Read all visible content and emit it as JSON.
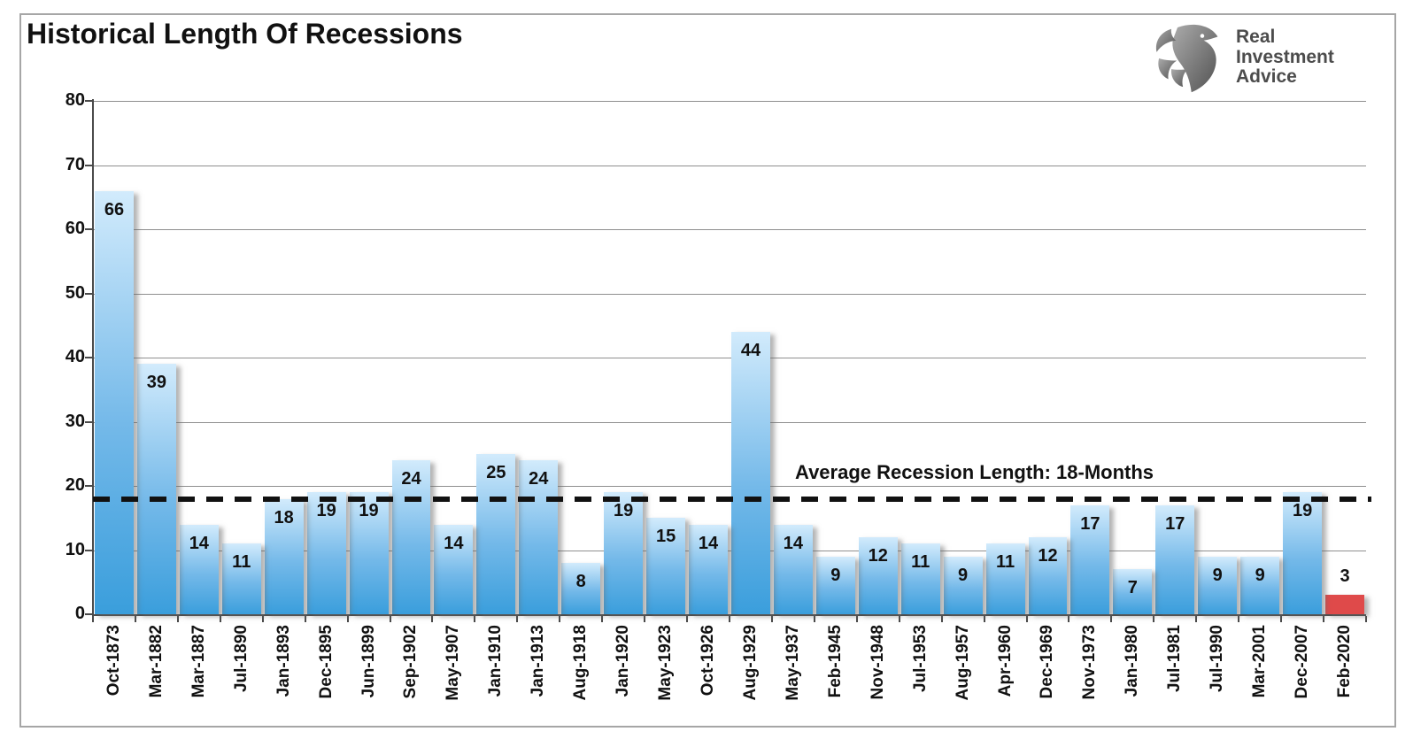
{
  "title": "Historical Length Of Recessions",
  "logo": {
    "icon": "eagle-icon",
    "line1": "Real",
    "line2": "Investment",
    "line3": "Advice"
  },
  "annotation": "Average Recession Length: 18-Months",
  "colors": {
    "bar_top": "#d2ebfc",
    "bar_mid": "#74b9e9",
    "bar_bottom": "#3a9edc",
    "bar_highlight": "#df4a4a",
    "gridline": "#8f8f8f",
    "axis": "#4a4a4a",
    "dashed_line": "#111111",
    "text": "#111111",
    "logo_text": "#4c4c4c"
  },
  "chart_data": {
    "type": "bar",
    "title": "Historical Length Of Recessions",
    "unit": "months",
    "categories": [
      "Oct-1873",
      "Mar-1882",
      "Mar-1887",
      "Jul-1890",
      "Jan-1893",
      "Dec-1895",
      "Jun-1899",
      "Sep-1902",
      "May-1907",
      "Jan-1910",
      "Jan-1913",
      "Aug-1918",
      "Jan-1920",
      "May-1923",
      "Oct-1926",
      "Aug-1929",
      "May-1937",
      "Feb-1945",
      "Nov-1948",
      "Jul-1953",
      "Aug-1957",
      "Apr-1960",
      "Dec-1969",
      "Nov-1973",
      "Jan-1980",
      "Jul-1981",
      "Jul-1990",
      "Mar-2001",
      "Dec-2007",
      "Feb-2020"
    ],
    "values": [
      66,
      39,
      14,
      11,
      18,
      19,
      19,
      24,
      14,
      25,
      24,
      8,
      19,
      15,
      14,
      44,
      14,
      9,
      12,
      11,
      9,
      11,
      12,
      17,
      7,
      17,
      9,
      9,
      19,
      3
    ],
    "ylim": [
      0,
      80
    ],
    "yticks": [
      0,
      10,
      20,
      30,
      40,
      50,
      60,
      70,
      80
    ],
    "grid": true,
    "legend": false,
    "average_line": {
      "value": 18,
      "label": "Average Recession Length: 18-Months",
      "style": "dashed"
    },
    "highlight": {
      "category": "Feb-2020",
      "index": 29,
      "color": "#df4a4a"
    }
  }
}
